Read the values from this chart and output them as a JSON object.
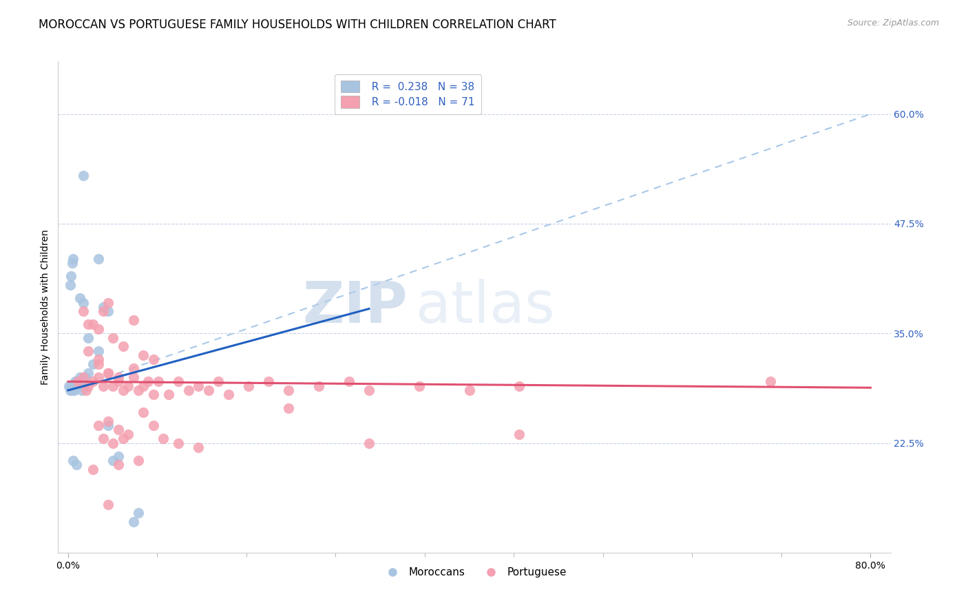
{
  "title": "MOROCCAN VS PORTUGUESE FAMILY HOUSEHOLDS WITH CHILDREN CORRELATION CHART",
  "source": "Source: ZipAtlas.com",
  "ylabel": "Family Households with Children",
  "x_tick_labels": [
    "0.0%",
    "",
    "",
    "",
    "",
    "",
    "",
    "",
    "",
    "80.0%"
  ],
  "x_tick_values": [
    0,
    8.89,
    17.78,
    26.67,
    35.56,
    44.44,
    53.33,
    62.22,
    71.11,
    80
  ],
  "x_minor_ticks": [
    0,
    8.89,
    17.78,
    26.67,
    35.56,
    44.44,
    53.33,
    62.22,
    71.11,
    80
  ],
  "y_tick_labels": [
    "22.5%",
    "35.0%",
    "47.5%",
    "60.0%"
  ],
  "y_tick_values": [
    22.5,
    35.0,
    47.5,
    60.0
  ],
  "xlim": [
    -1,
    82
  ],
  "ylim": [
    10,
    66
  ],
  "moroccan_color": "#a8c4e0",
  "portuguese_color": "#f4a0b0",
  "moroccan_line_color": "#2060c0",
  "portuguese_line_color": "#e05070",
  "trendline_dashed_color": "#a8c8e8",
  "background_color": "#ffffff",
  "grid_color": "#c8d4e8",
  "moroccan_scatter": [
    [
      0.1,
      29.0
    ],
    [
      0.2,
      28.5
    ],
    [
      0.3,
      29.0
    ],
    [
      0.4,
      28.5
    ],
    [
      0.5,
      29.0
    ],
    [
      0.6,
      28.5
    ],
    [
      0.7,
      29.5
    ],
    [
      0.8,
      29.0
    ],
    [
      0.9,
      29.5
    ],
    [
      1.0,
      29.0
    ],
    [
      1.1,
      29.5
    ],
    [
      1.2,
      30.0
    ],
    [
      1.3,
      29.0
    ],
    [
      1.4,
      28.5
    ],
    [
      1.5,
      29.0
    ],
    [
      1.6,
      29.5
    ],
    [
      1.7,
      30.0
    ],
    [
      2.0,
      30.5
    ],
    [
      2.5,
      31.5
    ],
    [
      3.0,
      33.0
    ],
    [
      0.2,
      40.5
    ],
    [
      0.3,
      41.5
    ],
    [
      0.4,
      43.0
    ],
    [
      0.5,
      43.5
    ],
    [
      1.2,
      39.0
    ],
    [
      1.5,
      38.5
    ],
    [
      4.5,
      20.5
    ],
    [
      5.0,
      21.0
    ],
    [
      4.0,
      24.5
    ],
    [
      6.5,
      13.5
    ],
    [
      0.5,
      20.5
    ],
    [
      0.8,
      20.0
    ],
    [
      7.0,
      14.5
    ],
    [
      1.5,
      53.0
    ],
    [
      3.0,
      43.5
    ],
    [
      3.5,
      38.0
    ],
    [
      4.0,
      37.5
    ],
    [
      2.0,
      34.5
    ]
  ],
  "portuguese_scatter": [
    [
      1.0,
      29.5
    ],
    [
      1.5,
      30.0
    ],
    [
      1.8,
      28.5
    ],
    [
      2.0,
      29.0
    ],
    [
      2.5,
      29.5
    ],
    [
      3.0,
      30.0
    ],
    [
      3.5,
      29.0
    ],
    [
      4.0,
      30.5
    ],
    [
      4.5,
      29.0
    ],
    [
      5.0,
      29.5
    ],
    [
      5.5,
      28.5
    ],
    [
      6.0,
      29.0
    ],
    [
      6.5,
      30.0
    ],
    [
      7.0,
      28.5
    ],
    [
      7.5,
      29.0
    ],
    [
      8.0,
      29.5
    ],
    [
      8.5,
      28.0
    ],
    [
      9.0,
      29.5
    ],
    [
      10.0,
      28.0
    ],
    [
      11.0,
      29.5
    ],
    [
      12.0,
      28.5
    ],
    [
      13.0,
      29.0
    ],
    [
      14.0,
      28.5
    ],
    [
      15.0,
      29.5
    ],
    [
      16.0,
      28.0
    ],
    [
      18.0,
      29.0
    ],
    [
      20.0,
      29.5
    ],
    [
      22.0,
      28.5
    ],
    [
      25.0,
      29.0
    ],
    [
      30.0,
      28.5
    ],
    [
      35.0,
      29.0
    ],
    [
      40.0,
      28.5
    ],
    [
      45.0,
      29.0
    ],
    [
      2.5,
      36.0
    ],
    [
      3.5,
      37.5
    ],
    [
      4.5,
      34.5
    ],
    [
      5.5,
      33.5
    ],
    [
      6.5,
      36.5
    ],
    [
      7.5,
      32.5
    ],
    [
      8.5,
      32.0
    ],
    [
      3.0,
      35.5
    ],
    [
      4.0,
      38.5
    ],
    [
      2.0,
      36.0
    ],
    [
      1.5,
      37.5
    ],
    [
      3.0,
      31.5
    ],
    [
      4.0,
      30.5
    ],
    [
      5.0,
      30.0
    ],
    [
      6.5,
      31.0
    ],
    [
      2.0,
      33.0
    ],
    [
      3.0,
      24.5
    ],
    [
      4.0,
      25.0
    ],
    [
      5.0,
      24.0
    ],
    [
      6.0,
      23.5
    ],
    [
      3.5,
      23.0
    ],
    [
      4.5,
      22.5
    ],
    [
      5.5,
      23.0
    ],
    [
      7.5,
      26.0
    ],
    [
      8.5,
      24.5
    ],
    [
      9.5,
      23.0
    ],
    [
      11.0,
      22.5
    ],
    [
      13.0,
      22.0
    ],
    [
      5.0,
      20.0
    ],
    [
      7.0,
      20.5
    ],
    [
      2.5,
      19.5
    ],
    [
      4.0,
      15.5
    ],
    [
      70.0,
      29.5
    ],
    [
      28.0,
      29.5
    ],
    [
      22.0,
      26.5
    ],
    [
      30.0,
      22.5
    ],
    [
      45.0,
      23.5
    ],
    [
      3.0,
      32.0
    ]
  ],
  "moroccan_trendline_solid": [
    [
      0,
      28.5
    ],
    [
      30,
      37.8
    ]
  ],
  "moroccan_trendline_dashed": [
    [
      0,
      28.5
    ],
    [
      80,
      60.0
    ]
  ],
  "portuguese_trendline": [
    [
      0,
      29.5
    ],
    [
      80,
      28.8
    ]
  ],
  "watermark_zip": "ZIP",
  "watermark_atlas": "atlas",
  "title_fontsize": 12,
  "axis_label_fontsize": 10,
  "tick_fontsize": 10,
  "legend_fontsize": 11
}
